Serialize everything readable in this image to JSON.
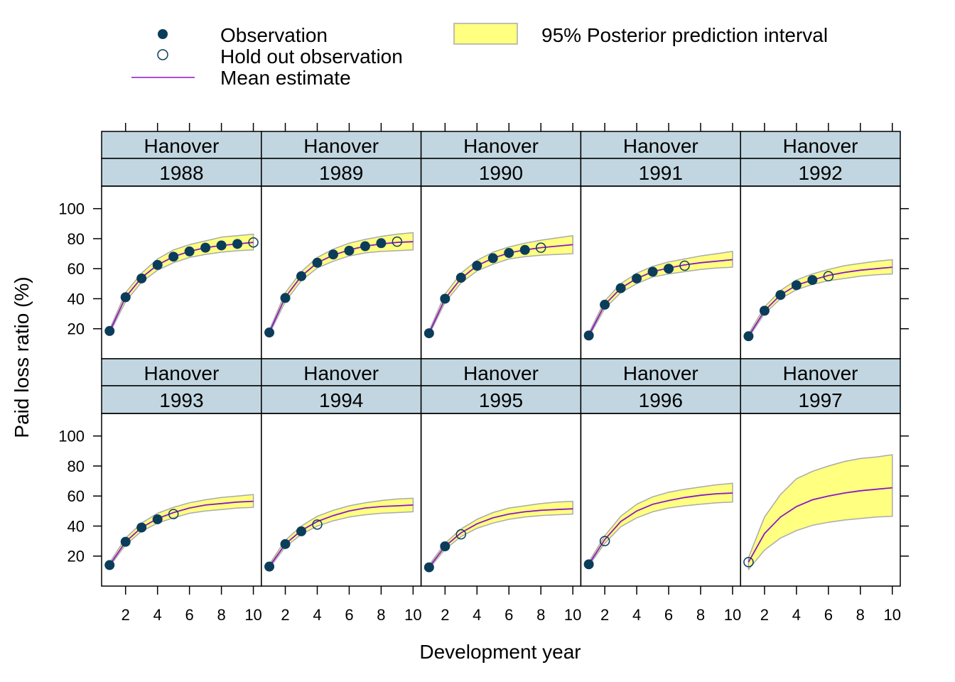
{
  "chart_data": {
    "type": "line",
    "xlabel": "Development year",
    "ylabel": "Paid loss ratio (%)",
    "xlim": [
      0.5,
      10.5
    ],
    "ylim": [
      0,
      115
    ],
    "xticks": [
      2,
      4,
      6,
      8,
      10
    ],
    "yticks": [
      20,
      40,
      60,
      80,
      100
    ],
    "grid": false,
    "layout": "5 columns x 2 rows of panels",
    "legend": {
      "position": "top",
      "observation": "Observation",
      "holdout": "Hold out observation",
      "mean": "Mean estimate",
      "interval": "95% Posterior prediction interval"
    },
    "colors": {
      "point": "#0b3d5a",
      "mean": "#8a16c9",
      "band_fill": "#ffff80",
      "band_edge": "#aaaaaa",
      "strip": "#c1d6e0"
    },
    "panels": [
      {
        "company": "Hanover",
        "year": "1988",
        "obs_x": [
          1,
          2,
          3,
          4,
          5,
          6,
          7,
          8,
          9
        ],
        "obs_y": [
          18.5,
          41,
          53.5,
          62.5,
          68,
          71.5,
          74,
          75.5,
          76.5
        ],
        "holdout_x": [
          10
        ],
        "holdout_y": [
          77.5
        ],
        "mean": [
          18,
          41,
          54,
          62.5,
          68,
          71.5,
          74,
          75.5,
          76.5,
          77.5
        ],
        "lower": [
          17,
          38,
          51,
          59,
          64,
          67.5,
          69.5,
          71,
          72,
          72.5
        ],
        "upper": [
          19.5,
          44,
          57,
          66.5,
          72.5,
          76,
          78.5,
          81,
          82,
          83
        ]
      },
      {
        "company": "Hanover",
        "year": "1989",
        "obs_x": [
          1,
          2,
          3,
          4,
          5,
          6,
          7,
          8
        ],
        "obs_y": [
          17.5,
          40.5,
          55,
          64,
          69.5,
          72,
          75,
          77
        ],
        "holdout_x": [
          9
        ],
        "holdout_y": [
          78
        ],
        "mean": [
          17.5,
          41,
          55,
          64,
          69,
          72.5,
          75,
          76.5,
          77.5,
          78
        ],
        "lower": [
          16.5,
          38,
          52,
          60.5,
          65,
          68.5,
          70.5,
          71.5,
          72,
          72.5
        ],
        "upper": [
          19,
          44,
          58,
          67.5,
          73,
          77,
          79.5,
          81.5,
          83,
          84
        ]
      },
      {
        "company": "Hanover",
        "year": "1990",
        "obs_x": [
          1,
          2,
          3,
          4,
          5,
          6,
          7
        ],
        "obs_y": [
          17,
          40,
          54,
          62,
          67,
          70.5,
          72.5
        ],
        "holdout_x": [
          8
        ],
        "holdout_y": [
          74
        ],
        "mean": [
          17,
          40,
          53.5,
          62,
          67,
          70.5,
          72.5,
          74,
          75,
          76
        ],
        "lower": [
          16,
          37.5,
          50.5,
          58.5,
          63,
          66.5,
          68,
          69,
          69.5,
          70
        ],
        "upper": [
          18.5,
          43,
          57,
          65.5,
          71,
          74.5,
          77,
          79,
          80.5,
          82
        ]
      },
      {
        "company": "Hanover",
        "year": "1991",
        "obs_x": [
          1,
          2,
          3,
          4,
          5,
          6
        ],
        "obs_y": [
          15.5,
          36,
          47,
          53.5,
          58,
          60
        ],
        "holdout_x": [
          7
        ],
        "holdout_y": [
          62
        ],
        "mean": [
          15.5,
          36,
          47,
          53.5,
          58,
          60.5,
          62.5,
          64,
          65,
          66
        ],
        "lower": [
          14.5,
          33.5,
          44,
          50,
          54.5,
          56.5,
          58,
          59.5,
          60.5,
          61
        ],
        "upper": [
          17,
          38.5,
          50,
          57,
          61.5,
          64.5,
          66.5,
          68.5,
          70,
          71.5
        ]
      },
      {
        "company": "Hanover",
        "year": "1992",
        "obs_x": [
          1,
          2,
          3,
          4,
          5
        ],
        "obs_y": [
          15,
          32,
          42.5,
          49,
          52.5
        ],
        "holdout_x": [
          6
        ],
        "holdout_y": [
          55
        ],
        "mean": [
          15,
          32,
          42.5,
          49,
          52.5,
          55.5,
          57.5,
          59,
          60,
          61
        ],
        "lower": [
          14,
          30,
          40,
          46,
          49.5,
          52,
          53.5,
          55,
          56,
          56.5
        ],
        "upper": [
          16.5,
          34.5,
          45.5,
          52.5,
          56.5,
          59.5,
          62,
          63.5,
          65,
          66
        ]
      },
      {
        "company": "Hanover",
        "year": "1993",
        "obs_x": [
          1,
          2,
          3,
          4
        ],
        "obs_y": [
          14,
          29.5,
          39,
          44.5
        ],
        "holdout_x": [
          5
        ],
        "holdout_y": [
          48
        ],
        "mean": [
          14,
          29.5,
          39,
          45,
          49,
          52,
          54,
          55,
          56,
          56.5
        ],
        "lower": [
          13,
          27.5,
          36.5,
          42,
          45.5,
          48.5,
          50,
          51,
          52,
          52.5
        ],
        "upper": [
          15.5,
          32,
          42,
          48.5,
          52.5,
          55.5,
          57.5,
          59,
          60,
          61
        ]
      },
      {
        "company": "Hanover",
        "year": "1994",
        "obs_x": [
          1,
          2,
          3
        ],
        "obs_y": [
          13,
          28,
          36.5
        ],
        "holdout_x": [
          4
        ],
        "holdout_y": [
          41
        ],
        "mean": [
          13,
          28,
          37,
          43,
          47,
          50,
          52,
          53,
          53.5,
          54
        ],
        "lower": [
          12,
          26,
          34.5,
          40,
          43.5,
          46,
          47.5,
          48.5,
          49,
          49.5
        ],
        "upper": [
          14.5,
          30.5,
          40,
          46.5,
          50.5,
          53.5,
          55.5,
          57,
          58,
          58.5
        ]
      },
      {
        "company": "Hanover",
        "year": "1995",
        "obs_x": [
          1,
          2
        ],
        "obs_y": [
          12.5,
          26.5
        ],
        "holdout_x": [
          3
        ],
        "holdout_y": [
          34.5
        ],
        "mean": [
          12.5,
          26.5,
          35.5,
          41.5,
          45.5,
          48,
          49.5,
          50.5,
          51,
          51.5
        ],
        "lower": [
          11.5,
          24.5,
          33,
          38.5,
          42,
          44.5,
          46,
          47,
          47.5,
          48
        ],
        "upper": [
          14,
          28.5,
          38,
          44.5,
          49,
          52,
          53.5,
          55,
          56,
          56.5
        ]
      },
      {
        "company": "Hanover",
        "year": "1996",
        "obs_x": [
          1
        ],
        "obs_y": [
          14.5
        ],
        "holdout_x": [
          2
        ],
        "holdout_y": [
          30
        ],
        "mean": [
          14.5,
          31,
          43,
          50,
          54.5,
          57,
          59,
          60.5,
          61.5,
          62
        ],
        "lower": [
          13.5,
          28.5,
          39.5,
          45.5,
          49.5,
          52,
          53.5,
          54.5,
          55.5,
          56
        ],
        "upper": [
          16,
          33.5,
          46.5,
          54.5,
          59.5,
          62.5,
          64.5,
          66,
          67.5,
          68.5
        ]
      },
      {
        "company": "Hanover",
        "year": "1997",
        "obs_x": [],
        "obs_y": [],
        "holdout_x": [
          1
        ],
        "holdout_y": [
          16
        ],
        "mean": [
          16,
          35,
          46,
          53,
          57.5,
          60,
          62,
          63.5,
          64.5,
          65.5
        ],
        "lower": [
          11,
          24,
          32,
          37,
          40.5,
          42.5,
          44,
          45,
          46,
          46.5
        ],
        "upper": [
          19,
          46,
          61,
          71.5,
          76.5,
          80,
          83,
          85,
          86,
          87.5
        ]
      }
    ]
  }
}
